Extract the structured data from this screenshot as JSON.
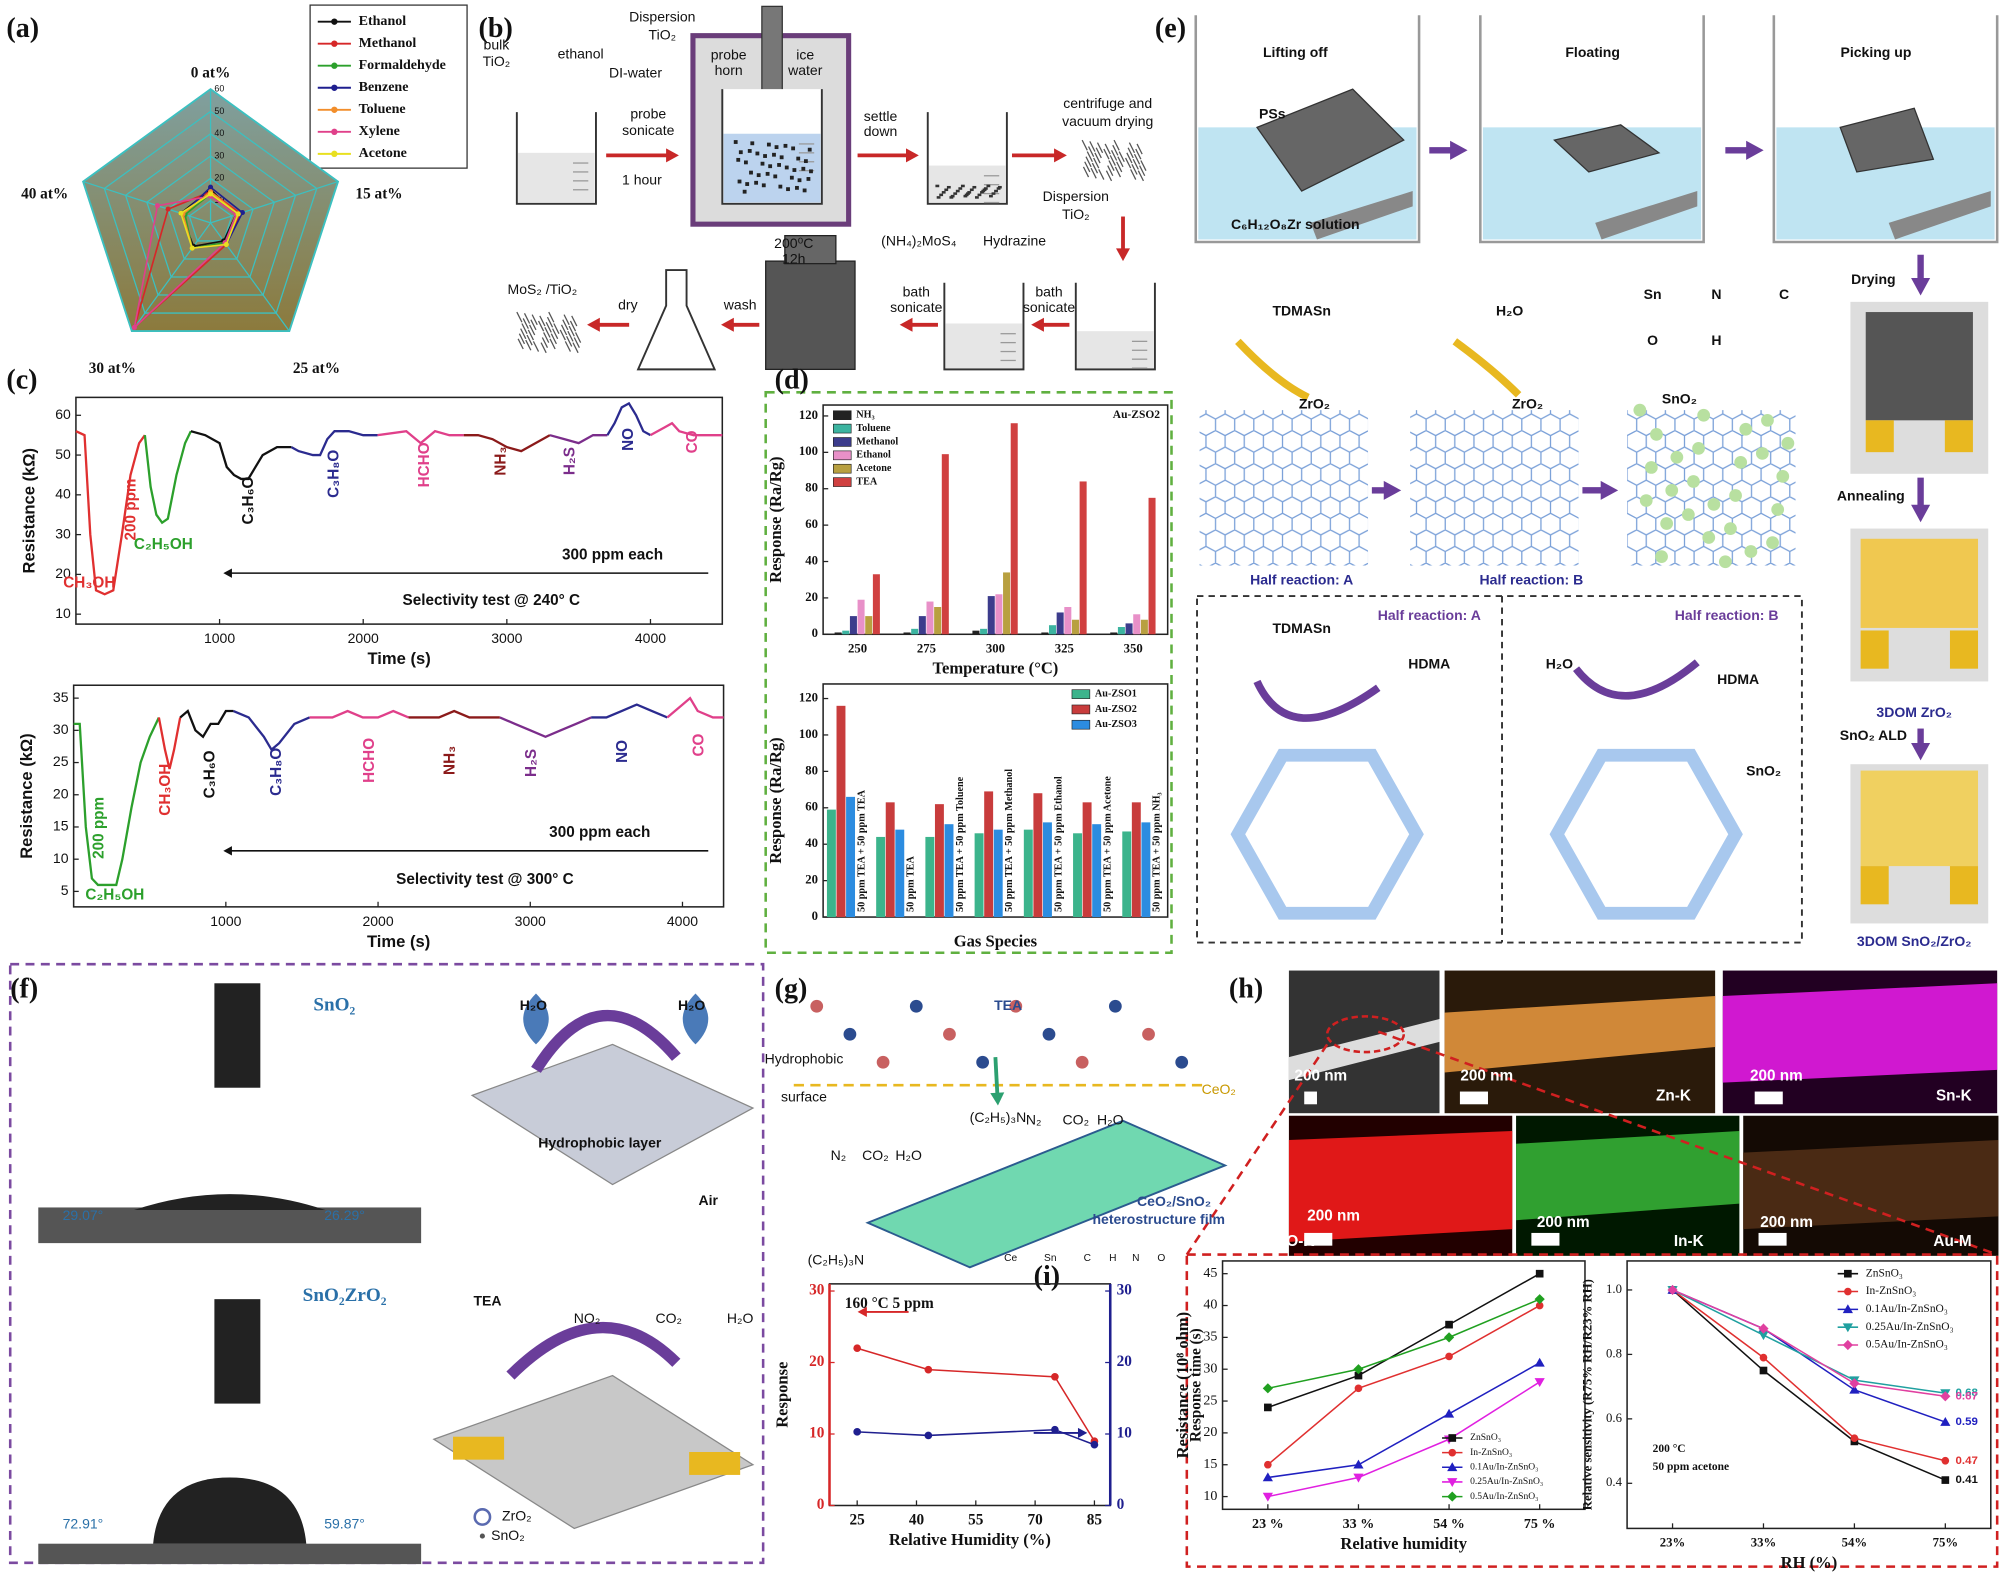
{
  "panel_labels": [
    "(a)",
    "(b)",
    "(c)",
    "(d)",
    "(e)",
    "(f)",
    "(g)",
    "(h)",
    "(i)"
  ],
  "diagrams": {
    "b": [
      "bulk",
      "TiO₂",
      "ethanol",
      "DI-water",
      "Dispersion",
      "TiO₂",
      "probe",
      "horn",
      "ice",
      "water",
      "probe",
      "sonicate",
      "1 hour",
      "settle",
      "down",
      "centrifuge and",
      "vacuum drying",
      "Dispersion",
      "TiO₂",
      "(NH₄)₂MoS₄",
      "Hydrazine",
      "200⁰C",
      "12h",
      "bath",
      "sonicate",
      "bath",
      "sonicate",
      "wash",
      "dry",
      "MoS₂ /TiO₂"
    ],
    "e": [
      "Lifting off",
      "Floating",
      "Picking up",
      "PSs",
      "C₆H₁₂O₈Zr solution",
      "Drying",
      "TDMASn",
      "H₂O",
      "Sn",
      "N",
      "C",
      "O",
      "H",
      "ZrO₂",
      "ZrO₂",
      "SnO₂",
      "Half reaction: A",
      "Half reaction: B",
      "Annealing",
      "Half reaction: A",
      "TDMASn",
      "HDMA",
      "Half reaction: B",
      "H₂O",
      "HDMA",
      "SnO₂",
      "3DOM ZrO₂",
      "SnO₂ ALD",
      "3DOM SnO₂/ZrO₂"
    ],
    "f": [
      "SnO₂",
      "29.07°",
      "26.29°",
      "H₂O",
      "H₂O",
      "Hydrophobic layer",
      "Air",
      "SnO₂ZrO₂",
      "72.91°",
      "59.87°",
      "TEA",
      "NO₂",
      "CO₂",
      "H₂O",
      "ZrO₂",
      "SnO₂"
    ],
    "g": [
      "TEA",
      "Hydrophobic",
      "surface",
      "CeO₂",
      "(C₂H₅)₃N",
      "N₂",
      "CO₂",
      "H₂O",
      "N₂",
      "CO₂",
      "H₂O",
      "(C₂H₅)₃N",
      "CeO₂/SnO₂",
      "heterostructure film",
      "Ce",
      "Sn",
      "C",
      "H",
      "N",
      "O"
    ],
    "h": [
      "200 nm",
      "200 nm",
      "Zn-K",
      "200 nm",
      "Sn-K",
      "200 nm",
      "O-K",
      "200 nm",
      "In-K",
      "200 nm",
      "Au-M"
    ]
  },
  "chart_data": [
    {
      "type": "radar",
      "categories": [
        "0 at%",
        "15 at%",
        "25 at%",
        "30 at%",
        "40 at%"
      ],
      "rlim": [
        0,
        60
      ],
      "rticks": [
        10,
        20,
        30,
        40,
        50,
        60
      ],
      "series": [
        {
          "name": "Ethanol",
          "color": "#111111",
          "values": [
            15,
            12,
            10,
            13,
            14
          ]
        },
        {
          "name": "Methanol",
          "color": "#d62728",
          "values": [
            14,
            14,
            12,
            58,
            20
          ]
        },
        {
          "name": "Formaldehyde",
          "color": "#2ca02c",
          "values": [
            13,
            12,
            11,
            14,
            12
          ]
        },
        {
          "name": "Benzene",
          "color": "#1f1f8f",
          "values": [
            16,
            15,
            12,
            14,
            13
          ]
        },
        {
          "name": "Toluene",
          "color": "#f28e2b",
          "values": [
            14,
            13,
            12,
            14,
            13
          ]
        },
        {
          "name": "Xylene",
          "color": "#e0408a",
          "values": [
            12,
            12,
            11,
            58,
            25
          ]
        },
        {
          "name": "Acetone",
          "color": "#e8e020",
          "values": [
            13,
            13,
            12,
            14,
            14
          ]
        }
      ]
    },
    {
      "type": "line",
      "xlabel": "Time (s)",
      "ylabel": "Resistance (kΩ)",
      "xlim": [
        0,
        4500
      ],
      "ylim": [
        7.5,
        64.5
      ],
      "xticks": [
        1000,
        2000,
        3000,
        4000
      ],
      "yticks": [
        10,
        20,
        30,
        40,
        50,
        60
      ],
      "annotations": [
        "200 ppm",
        "CH₃OH",
        "C₂H₅OH",
        "C₃H₆O",
        "C₃H₈O",
        "HCHO",
        "NH₃",
        "H₂S",
        "NO",
        "CO",
        "300 ppm each",
        "Selectivity test @ 240° C"
      ],
      "series": [
        {
          "color": "#e03030",
          "x": [
            0,
            60,
            100,
            140,
            200,
            260,
            320,
            380,
            440,
            480
          ],
          "values": [
            56,
            55,
            30,
            16,
            15,
            16,
            30,
            45,
            53,
            55
          ]
        },
        {
          "color": "#2ca02c",
          "x": [
            480,
            520,
            560,
            600,
            640,
            700,
            760,
            800
          ],
          "values": [
            55,
            42,
            35,
            33,
            34,
            45,
            53,
            56
          ]
        },
        {
          "color": "#111111",
          "x": [
            800,
            900,
            1000,
            1050,
            1100,
            1150,
            1200,
            1300,
            1400,
            1500
          ],
          "values": [
            56,
            55,
            53,
            47,
            45,
            44,
            44,
            50,
            52,
            52
          ]
        },
        {
          "color": "#2b2b8f",
          "x": [
            1500,
            1550,
            1650,
            1700,
            1750,
            1800,
            1900,
            2000,
            2100
          ],
          "values": [
            52,
            51,
            50,
            50,
            54,
            56,
            56,
            55,
            55
          ]
        },
        {
          "color": "#e0408a",
          "x": [
            2100,
            2300,
            2400,
            2500,
            2600,
            2700
          ],
          "values": [
            55,
            56,
            53,
            56,
            55,
            55
          ]
        },
        {
          "color": "#8b1a1a",
          "x": [
            2700,
            2800,
            2900,
            3000,
            3100,
            3200,
            3300
          ],
          "values": [
            55,
            55,
            54,
            52,
            51,
            53,
            55
          ]
        },
        {
          "color": "#7b2d8b",
          "x": [
            3300,
            3400,
            3500,
            3600,
            3700
          ],
          "values": [
            55,
            54,
            53,
            55,
            55
          ]
        },
        {
          "color": "#2b2b8f",
          "x": [
            3700,
            3750,
            3800,
            3850,
            3900,
            3950,
            4000
          ],
          "values": [
            55,
            58,
            62,
            63,
            60,
            56,
            55
          ]
        },
        {
          "color": "#e0408a",
          "x": [
            4000,
            4100,
            4150,
            4200,
            4300,
            4400,
            4500
          ],
          "values": [
            55,
            57,
            58,
            56,
            55,
            55,
            55
          ]
        }
      ]
    },
    {
      "type": "line",
      "xlabel": "Time (s)",
      "ylabel": "Resistance (kΩ)",
      "xlim": [
        0,
        4270
      ],
      "ylim": [
        2.6,
        37
      ],
      "xticks": [
        1000,
        2000,
        3000,
        4000
      ],
      "yticks": [
        5,
        10,
        15,
        20,
        25,
        30,
        35
      ],
      "annotations": [
        "200 ppm",
        "C₂H₅OH",
        "CH₃OH",
        "C₃H₆O",
        "C₃H₈O",
        "HCHO",
        "NH₃",
        "H₂S",
        "NO",
        "CO",
        "300 ppm each",
        "Selectivity test @ 300° C"
      ],
      "series": [
        {
          "color": "#2ca02c",
          "x": [
            0,
            40,
            80,
            120,
            160,
            200,
            240,
            280,
            320,
            380,
            440,
            500,
            560
          ],
          "values": [
            31,
            31,
            15,
            7,
            6,
            6,
            6,
            6,
            10,
            18,
            25,
            29,
            32
          ]
        },
        {
          "color": "#e03030",
          "x": [
            560,
            600,
            630,
            660,
            700
          ],
          "values": [
            32,
            27,
            24,
            27,
            32
          ]
        },
        {
          "color": "#111111",
          "x": [
            700,
            750,
            800,
            850,
            900,
            950,
            1000,
            1050
          ],
          "values": [
            32,
            33,
            30,
            29,
            31,
            31,
            33,
            33
          ]
        },
        {
          "color": "#2b2b8f",
          "x": [
            1050,
            1150,
            1250,
            1300,
            1350,
            1450,
            1550
          ],
          "values": [
            33,
            32,
            29,
            27,
            28,
            31,
            32
          ]
        },
        {
          "color": "#e0408a",
          "x": [
            1550,
            1700,
            1800,
            1900,
            2000,
            2100,
            2200
          ],
          "values": [
            32,
            32,
            33,
            32,
            32,
            33,
            32
          ]
        },
        {
          "color": "#8b1a1a",
          "x": [
            2200,
            2400,
            2500,
            2600,
            2700,
            2800
          ],
          "values": [
            32,
            32,
            33,
            32,
            32,
            32
          ]
        },
        {
          "color": "#7b2d8b",
          "x": [
            2800,
            2900,
            3000,
            3100,
            3200,
            3300,
            3400
          ],
          "values": [
            32,
            31,
            30,
            29,
            30,
            31,
            32
          ]
        },
        {
          "color": "#2b2b8f",
          "x": [
            3400,
            3500,
            3600,
            3700,
            3800,
            3900
          ],
          "values": [
            32,
            32,
            33,
            34,
            33,
            32
          ]
        },
        {
          "color": "#e0408a",
          "x": [
            3900,
            4000,
            4050,
            4100,
            4200,
            4270
          ],
          "values": [
            32,
            34,
            35,
            33,
            32,
            32
          ]
        }
      ]
    },
    {
      "type": "bar",
      "title": "Au-ZSO2",
      "xlabel": "Temperature (°C)",
      "ylabel": "Response (Ra/Rg)",
      "categories": [
        "250",
        "275",
        "300",
        "325",
        "350"
      ],
      "ylim": [
        0,
        126
      ],
      "yticks": [
        0,
        20,
        40,
        60,
        80,
        100,
        120
      ],
      "legend": "upper left",
      "series": [
        {
          "name": "NH₃",
          "color": "#222222",
          "values": [
            1,
            1,
            2,
            1,
            1
          ]
        },
        {
          "name": "Toluene",
          "color": "#3cb4a0",
          "values": [
            2,
            3,
            3,
            5,
            4
          ]
        },
        {
          "name": "Methanol",
          "color": "#3c3c8c",
          "values": [
            10,
            10,
            21,
            12,
            6
          ]
        },
        {
          "name": "Ethanol",
          "color": "#e890c8",
          "values": [
            19,
            18,
            22,
            15,
            11
          ]
        },
        {
          "name": "Acetone",
          "color": "#b8a040",
          "values": [
            10,
            15,
            34,
            8,
            8
          ]
        },
        {
          "name": "TEA",
          "color": "#d04040",
          "values": [
            33,
            99,
            116,
            84,
            75
          ]
        }
      ]
    },
    {
      "type": "bar",
      "xlabel": "Gas Species",
      "ylabel": "Response (Ra/Rg)",
      "categories": [
        "50 ppm TEA + 50 ppm TEA",
        "50 ppm TEA",
        "50 ppm TEA + 50 ppm Toluene",
        "50 ppm TEA + 50 ppm Methanol",
        "50 ppm TEA + 50 ppm Ethanol",
        "50 ppm TEA + 50 ppm Acetone",
        "50 ppm TEA + 50 ppm NH₃"
      ],
      "ylim": [
        0,
        128
      ],
      "yticks": [
        0,
        20,
        40,
        60,
        80,
        100,
        120
      ],
      "legend": "upper right",
      "series": [
        {
          "name": "Au-ZSO1",
          "color": "#3cb48c",
          "values": [
            59,
            44,
            44,
            46,
            48,
            46,
            47
          ]
        },
        {
          "name": "Au-ZSO2",
          "color": "#c83c3c",
          "values": [
            116,
            63,
            62,
            69,
            68,
            63,
            63
          ]
        },
        {
          "name": "Au-ZSO3",
          "color": "#2c8ce0",
          "values": [
            66,
            48,
            51,
            48,
            52,
            51,
            52
          ]
        }
      ]
    },
    {
      "type": "line",
      "title": "160 °C 5 ppm",
      "xlabel": "Relative Humidity (%)",
      "ylabel": "Response",
      "x": [
        25,
        43,
        75,
        85
      ],
      "xlim": [
        18,
        89
      ],
      "xticks": [
        25,
        40,
        55,
        70,
        85
      ],
      "ylim": [
        0,
        31
      ],
      "yticks": [
        0,
        10,
        20,
        30
      ],
      "y2lim": [
        0,
        31
      ],
      "y2ticks": [
        0,
        10,
        20,
        30
      ],
      "series": [
        {
          "color": "#d62728",
          "values": [
            22,
            19,
            18,
            9
          ]
        },
        {
          "color": "#1f1f8f",
          "axis": "y2",
          "values": [
            10.3,
            9.8,
            10.6,
            8.5
          ]
        }
      ]
    },
    {
      "type": "line",
      "xlabel": "Relative humidity",
      "ylabel": "Resistance (10⁸ ohm)",
      "ylabel2": "Response time (s)",
      "categories": [
        "23 %",
        "33 %",
        "54 %",
        "75 %"
      ],
      "ylim": [
        8,
        47
      ],
      "yticks": [
        10,
        15,
        20,
        25,
        30,
        35,
        40,
        45
      ],
      "legend": "lower right",
      "series": [
        {
          "name": "ZnSnO₃",
          "color": "#111111",
          "values": [
            24,
            29,
            37,
            45
          ]
        },
        {
          "name": "In-ZnSnO₃",
          "color": "#e03030",
          "values": [
            15,
            27,
            32,
            40
          ]
        },
        {
          "name": "0.1Au/In-ZnSnO₃",
          "color": "#2020c0",
          "values": [
            13,
            15,
            23,
            31
          ]
        },
        {
          "name": "0.25Au/In-ZnSnO₃",
          "color": "#e020e0",
          "values": [
            10,
            13,
            19,
            28
          ]
        },
        {
          "name": "0.5Au/In-ZnSnO₃",
          "color": "#20a020",
          "values": [
            27,
            30,
            35,
            41
          ]
        }
      ]
    },
    {
      "type": "line",
      "xlabel": "RH (%)",
      "ylabel": "Relative sensitivity (R75% RH/R23% RH)",
      "categories": [
        "23%",
        "33%",
        "54%",
        "75%"
      ],
      "ylim": [
        0.26,
        1.09
      ],
      "yticks": [
        0.4,
        0.6,
        0.8,
        {
          "value": 1.0,
          "label": "1.0"
        }
      ],
      "legend": "upper right",
      "annotations": [
        "200 °C",
        "50 ppm acetone"
      ],
      "series": [
        {
          "name": "ZnSnO₃",
          "color": "#111111",
          "values": [
            1,
            0.75,
            0.53,
            0.41
          ]
        },
        {
          "name": "In-ZnSnO₃",
          "color": "#e03030",
          "values": [
            1,
            0.79,
            0.54,
            0.47
          ]
        },
        {
          "name": "0.1Au/In-ZnSnO₃",
          "color": "#2020c0",
          "values": [
            1,
            0.88,
            0.69,
            0.59
          ]
        },
        {
          "name": "0.25Au/In-ZnSnO₃",
          "color": "#20a0a0",
          "values": [
            1,
            0.86,
            0.72,
            0.68
          ]
        },
        {
          "name": "0.5Au/In-ZnSnO₃",
          "color": "#e040a0",
          "values": [
            1,
            0.88,
            0.71,
            0.67
          ]
        }
      ]
    }
  ]
}
